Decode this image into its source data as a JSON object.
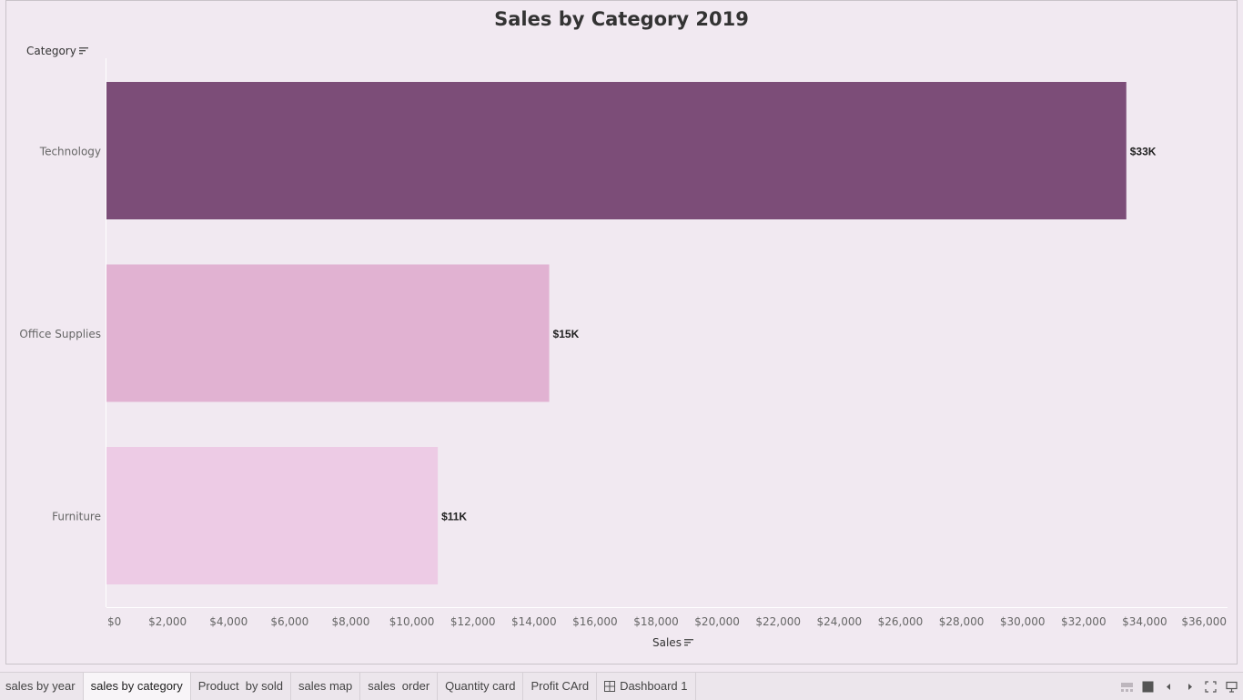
{
  "chart_data": {
    "type": "bar",
    "orientation": "horizontal",
    "title": "Sales by Category 2019",
    "categories": [
      "Technology",
      "Office Supplies",
      "Furniture"
    ],
    "values": [
      33400,
      14500,
      10850
    ],
    "data_labels": [
      "$33K",
      "$15K",
      "$11K"
    ],
    "colors": [
      "#7c4d78",
      "#e1b2d2",
      "#edcbe5"
    ],
    "xlabel": "Sales",
    "ylabel": "Category",
    "xlim": [
      0,
      36000
    ],
    "x_ticks": [
      0,
      2000,
      4000,
      6000,
      8000,
      10000,
      12000,
      14000,
      16000,
      18000,
      20000,
      22000,
      24000,
      26000,
      28000,
      30000,
      32000,
      34000,
      36000
    ],
    "x_tick_labels": [
      "$0",
      "$2,000",
      "$4,000",
      "$6,000",
      "$8,000",
      "$10,000",
      "$12,000",
      "$14,000",
      "$16,000",
      "$18,000",
      "$20,000",
      "$22,000",
      "$24,000",
      "$26,000",
      "$28,000",
      "$30,000",
      "$32,000",
      "$34,000",
      "$36,000"
    ],
    "grid": false
  },
  "tabs": [
    {
      "label": "sales by year",
      "icon": "",
      "active": false
    },
    {
      "label": "sales by category",
      "icon": "",
      "active": true
    },
    {
      "label": "Product  by sold",
      "icon": "",
      "active": false
    },
    {
      "label": "sales map",
      "icon": "",
      "active": false
    },
    {
      "label": "sales  order",
      "icon": "",
      "active": false
    },
    {
      "label": "Quantity card",
      "icon": "",
      "active": false
    },
    {
      "label": "Profit CArd",
      "icon": "",
      "active": false
    },
    {
      "label": "Dashboard 1",
      "icon": "dashboard-grid-icon",
      "active": false
    }
  ],
  "controls": [
    "filmstrip-view-icon",
    "tab-view-icon",
    "previous-sheet-icon",
    "next-sheet-icon",
    "fullscreen-icon",
    "presentation-mode-icon"
  ]
}
